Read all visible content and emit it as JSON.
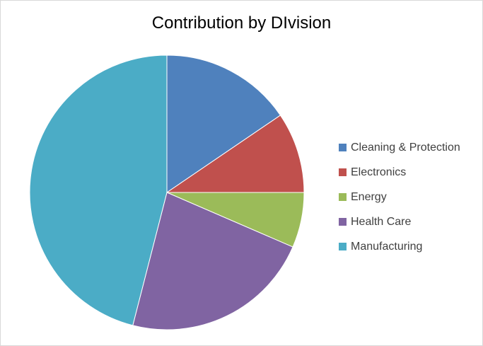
{
  "chart_data": {
    "type": "pie",
    "title": "Contribution by DIvision",
    "categories": [
      "Cleaning & Protection",
      "Electronics",
      "Energy",
      "Health Care",
      "Manufacturing"
    ],
    "values": [
      15.5,
      9.5,
      6.5,
      22.5,
      46.0
    ],
    "colors": [
      "#4f81bd",
      "#c0504d",
      "#9bbb59",
      "#8064a2",
      "#4bacc6"
    ],
    "start_angle_deg": 0,
    "direction": "clockwise",
    "legend_position": "right"
  }
}
